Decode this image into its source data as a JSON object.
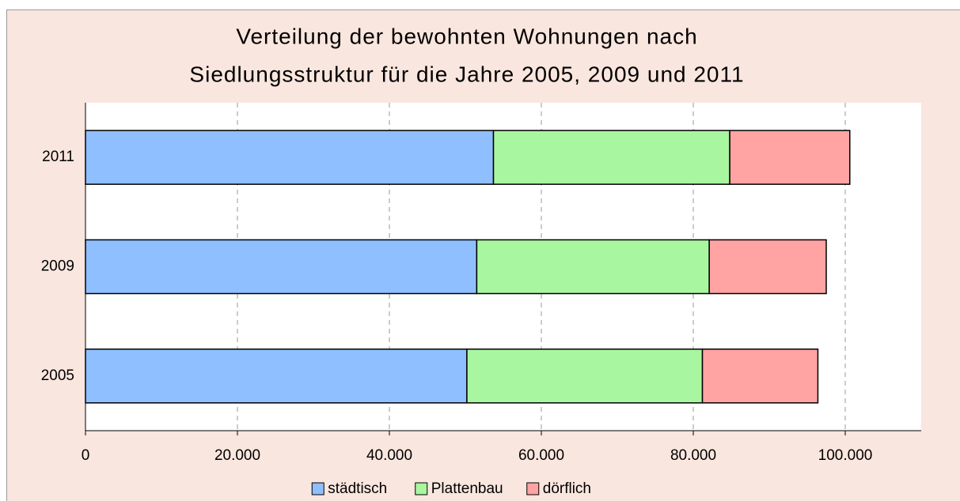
{
  "chart_data": {
    "type": "stacked-barh",
    "title": [
      "Verteilung der bewohnten Wohnungen nach",
      "Siedlungsstruktur für die Jahre 2005, 2009 und 2011"
    ],
    "categories": [
      "2011",
      "2009",
      "2005"
    ],
    "series": [
      {
        "name": "städtisch",
        "color": "#8fbfff",
        "values": [
          53700,
          51500,
          50200
        ]
      },
      {
        "name": "Plattenbau",
        "color": "#a9f6a0",
        "values": [
          31100,
          30600,
          31000
        ]
      },
      {
        "name": "dörflich",
        "color": "#ffa3a3",
        "values": [
          15800,
          15400,
          15200
        ]
      }
    ],
    "xlim": [
      0,
      110000
    ],
    "xticks": [
      0,
      {
        "value": 20000,
        "label": "20.000"
      },
      {
        "value": 40000,
        "label": "40.000"
      },
      {
        "value": 60000,
        "label": "60.000"
      },
      {
        "value": 80000,
        "label": "80.000"
      },
      {
        "value": 100000,
        "label": "100.000"
      }
    ],
    "grid": true,
    "legend": "bottom"
  }
}
